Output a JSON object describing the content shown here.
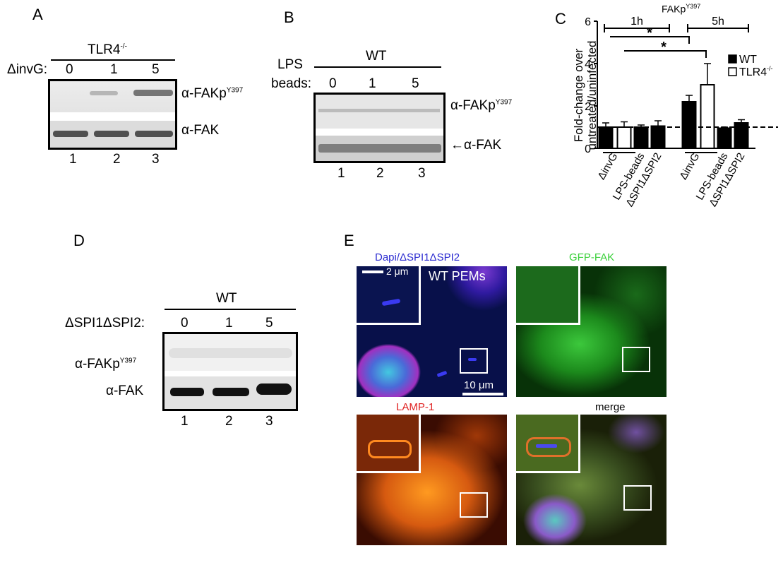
{
  "panel_a": {
    "letter": "A",
    "group_label": "TLR4",
    "group_sup": "-/-",
    "row_label": "ΔinvG:",
    "lanes": [
      "0",
      "1",
      "5"
    ],
    "band_top_label": "α-FAKp",
    "band_top_sup": "Y397",
    "band_bottom_label": "α-FAK",
    "lane_numbers": [
      "1",
      "2",
      "3"
    ]
  },
  "panel_b": {
    "letter": "B",
    "group_label": "WT",
    "row_label_1": "LPS",
    "row_label_2": "beads:",
    "lanes": [
      "0",
      "1",
      "5"
    ],
    "band_top_label": "α-FAKp",
    "band_top_sup": "Y397",
    "band_bottom_label": "α-FAK",
    "lane_numbers": [
      "1",
      "2",
      "3"
    ]
  },
  "panel_c": {
    "letter": "C",
    "title": "FAKp",
    "title_sup": "Y397",
    "ylabel_1": "Fold-change over",
    "ylabel_2": "untreated/uninfected",
    "time_1h": "1h",
    "time_5h": "5h",
    "star": "*",
    "legend": [
      {
        "label": "WT",
        "color": "#000000"
      },
      {
        "label": "TLR4",
        "sup": "-/-",
        "color": "#ffffff"
      }
    ],
    "categories": [
      "ΔinvG",
      "LPS-beads",
      "ΔSPI1ΔSPI2",
      "ΔinvG",
      "LPS-beads",
      "ΔSPI1ΔSPI2"
    ]
  },
  "chart_data": {
    "type": "bar",
    "title": "FAKp Y397",
    "groups": [
      "1h",
      "5h"
    ],
    "categories": [
      "ΔinvG",
      "LPS-beads",
      "ΔSPI1ΔSPI2"
    ],
    "series": [
      {
        "name": "WT",
        "values_1h": [
          1.0,
          1.0,
          1.05
        ],
        "values_5h": [
          2.2,
          0.95,
          1.2
        ],
        "errors_1h": [
          0.2,
          0.1,
          0.25
        ],
        "errors_5h": [
          0.3,
          0.05,
          0.15
        ]
      },
      {
        "name": "TLR4-/-",
        "values_1h": [
          1.0,
          null,
          null
        ],
        "values_5h": [
          3.0,
          null,
          null
        ],
        "errors_1h": [
          0.25,
          null,
          null
        ],
        "errors_5h": [
          1.0,
          null,
          null
        ]
      }
    ],
    "order": [
      {
        "group": "1h",
        "cat": "ΔinvG",
        "wt": 1.0,
        "wt_err": 0.2,
        "ko": 1.0,
        "ko_err": 0.25
      },
      {
        "group": "1h",
        "cat": "LPS-beads",
        "wt": 1.0,
        "wt_err": 0.1
      },
      {
        "group": "1h",
        "cat": "ΔSPI1ΔSPI2",
        "wt": 1.05,
        "wt_err": 0.25
      },
      {
        "group": "5h",
        "cat": "ΔinvG",
        "wt": 2.2,
        "wt_err": 0.3,
        "ko": 3.0,
        "ko_err": 1.0
      },
      {
        "group": "5h",
        "cat": "LPS-beads",
        "wt": 0.95,
        "wt_err": 0.05
      },
      {
        "group": "5h",
        "cat": "ΔSPI1ΔSPI2",
        "wt": 1.2,
        "wt_err": 0.15
      }
    ],
    "ylabel": "Fold-change over untreated/uninfected",
    "ylim": [
      0,
      6
    ],
    "yticks": [
      "0",
      "2",
      "4",
      "6"
    ],
    "reference_line": 1,
    "significance": [
      "*",
      "*"
    ]
  },
  "panel_d": {
    "letter": "D",
    "group_label": "WT",
    "row_label": "ΔSPI1ΔSPI2:",
    "lanes": [
      "0",
      "1",
      "5"
    ],
    "band_top_label": "α-FAKp",
    "band_top_sup": "Y397",
    "band_bottom_label": "α-FAK",
    "lane_numbers": [
      "1",
      "2",
      "3"
    ]
  },
  "panel_e": {
    "letter": "E",
    "titles": {
      "dapi": "Dapi/ΔSPI1ΔSPI2",
      "gfp": "GFP-FAK",
      "lamp": "LAMP-1",
      "merge": "merge"
    },
    "colors": {
      "dapi": "#2a2ad0",
      "gfp": "#38d038",
      "lamp": "#e02020",
      "merge": "#000000"
    },
    "scale_small": "2 μm",
    "scale_large": "10 μm",
    "cell_label": "WT PEMs"
  }
}
